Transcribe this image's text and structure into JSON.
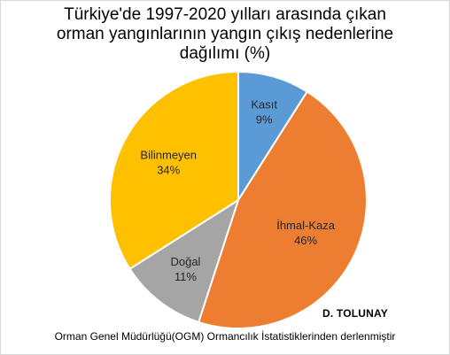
{
  "chart_data": {
    "type": "pie",
    "title_lines": [
      "Türkiye'de 1997-2020 yılları arasında çıkan",
      "orman yangınlarının yangın çıkış nedenlerine",
      "dağılımı (%)"
    ],
    "slices": [
      {
        "label": "Kasıt",
        "value": 9,
        "value_label": "9%",
        "color": "#5b9bd5"
      },
      {
        "label": "İhmal-Kaza",
        "value": 46,
        "value_label": "46%",
        "color": "#ed7d31"
      },
      {
        "label": "Doğal",
        "value": 11,
        "value_label": "11%",
        "color": "#a5a5a5"
      },
      {
        "label": "Bilinmeyen",
        "value": 34,
        "value_label": "34%",
        "color": "#ffc000"
      }
    ]
  },
  "author": "D. TOLUNAY",
  "source": "Orman Genel Müdürlüğü(OGM) Ormancılık İstatistiklerinden derlenmiştir"
}
